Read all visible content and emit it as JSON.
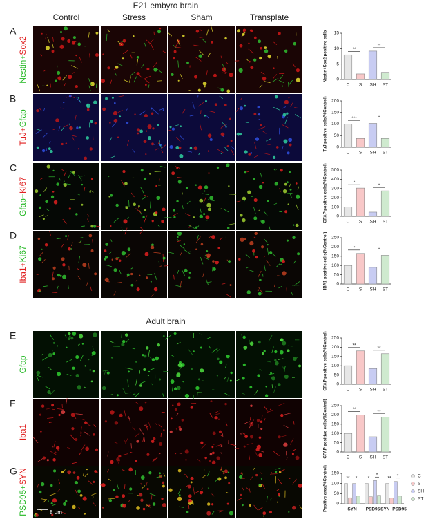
{
  "header": {
    "title": "E21 embyro brain",
    "section2": "Adult brain"
  },
  "columns": [
    "Control",
    "Stress",
    "Sham",
    "Transplate"
  ],
  "rows": [
    {
      "letter": "A",
      "label": [
        {
          "text": "Nestin",
          "color": "#22b822"
        },
        {
          "text": "+",
          "color": "#22b822"
        },
        {
          "text": "Sox2",
          "color": "#e02020"
        }
      ]
    },
    {
      "letter": "B",
      "label": [
        {
          "text": "TuJ",
          "color": "#e02020"
        },
        {
          "text": "+",
          "color": "#e02020"
        },
        {
          "text": "Gfap",
          "color": "#22b822"
        }
      ]
    },
    {
      "letter": "C",
      "label": [
        {
          "text": "Gfap",
          "color": "#22b822"
        },
        {
          "text": "+",
          "color": "#22b822"
        },
        {
          "text": "Ki67",
          "color": "#e02020"
        }
      ]
    },
    {
      "letter": "D",
      "label": [
        {
          "text": "Iba1",
          "color": "#e02020"
        },
        {
          "text": "+",
          "color": "#e02020"
        },
        {
          "text": "Ki67",
          "color": "#22b822"
        }
      ]
    },
    {
      "letter": "E",
      "label": [
        {
          "text": "Gfap",
          "color": "#22b822"
        }
      ]
    },
    {
      "letter": "F",
      "label": [
        {
          "text": "Iba1",
          "color": "#e02020"
        }
      ]
    },
    {
      "letter": "G",
      "label": [
        {
          "text": "PSD95",
          "color": "#22b822"
        },
        {
          "text": "+",
          "color": "#22b822"
        },
        {
          "text": "SYN",
          "color": "#e02020"
        }
      ]
    }
  ],
  "scale_bar": "8 μm",
  "chart_data": [
    {
      "type": "bar",
      "ylabel": "Nestin+Sox2 positive cells",
      "categories": [
        "C",
        "S",
        "SH",
        "ST"
      ],
      "values": [
        8,
        1.8,
        9.2,
        2.3
      ],
      "colors": [
        "#e6e6e6",
        "#f8c8c8",
        "#c8ccf2",
        "#cfeacf"
      ],
      "ylim": [
        0,
        15
      ],
      "yticks": [
        0,
        5,
        10,
        15
      ],
      "annotations": [
        "**",
        "**"
      ]
    },
    {
      "type": "bar",
      "ylabel": "TuJ positive cells(%Control)",
      "categories": [
        "C",
        "S",
        "SH",
        "ST"
      ],
      "values": [
        100,
        38,
        103,
        38
      ],
      "colors": [
        "#e6e6e6",
        "#f8c8c8",
        "#c8ccf2",
        "#cfeacf"
      ],
      "ylim": [
        0,
        200
      ],
      "yticks": [
        0,
        50,
        100,
        150,
        200
      ],
      "annotations": [
        "***",
        "*"
      ]
    },
    {
      "type": "bar",
      "ylabel": "GFAP positive cells(%Control)",
      "categories": [
        "C",
        "S",
        "SH",
        "ST"
      ],
      "values": [
        100,
        305,
        45,
        275
      ],
      "colors": [
        "#e6e6e6",
        "#f8c8c8",
        "#c8ccf2",
        "#cfeacf"
      ],
      "ylim": [
        0,
        500
      ],
      "yticks": [
        0,
        100,
        200,
        300,
        400,
        500
      ],
      "annotations": [
        "*",
        "*"
      ]
    },
    {
      "type": "bar",
      "ylabel": "IBA1 positive cells(%Control)",
      "categories": [
        "C",
        "S",
        "SH",
        "ST"
      ],
      "values": [
        100,
        165,
        90,
        155
      ],
      "colors": [
        "#e6e6e6",
        "#f8c8c8",
        "#c8ccf2",
        "#cfeacf"
      ],
      "ylim": [
        0,
        250
      ],
      "yticks": [
        0,
        50,
        100,
        150,
        200,
        250
      ],
      "annotations": [
        "*",
        "*"
      ]
    },
    {
      "type": "bar",
      "ylabel": "GFAP positive cells(%Control)",
      "categories": [
        "C",
        "S",
        "SH",
        "ST"
      ],
      "values": [
        100,
        180,
        85,
        165
      ],
      "colors": [
        "#e6e6e6",
        "#f8c8c8",
        "#c8ccf2",
        "#cfeacf"
      ],
      "ylim": [
        0,
        250
      ],
      "yticks": [
        0,
        50,
        100,
        150,
        200,
        250
      ],
      "annotations": [
        "**",
        "**"
      ]
    },
    {
      "type": "bar",
      "ylabel": "GFAP positive cells(%Control)",
      "categories": [
        "C",
        "S",
        "SH",
        "ST"
      ],
      "values": [
        100,
        200,
        82,
        188
      ],
      "colors": [
        "#e6e6e6",
        "#f8c8c8",
        "#c8ccf2",
        "#cfeacf"
      ],
      "ylim": [
        0,
        250
      ],
      "yticks": [
        0,
        50,
        100,
        150,
        200,
        250
      ],
      "annotations": [
        "**",
        "**"
      ]
    },
    {
      "type": "grouped_bar",
      "ylabel": "Positive area(%Control)",
      "categories": [
        "SYN",
        "PSD95",
        "SYN+PSD95"
      ],
      "series": [
        {
          "name": "C",
          "color": "#e6e6e6",
          "values": [
            100,
            100,
            100
          ]
        },
        {
          "name": "S",
          "color": "#f8c8c8",
          "values": [
            30,
            35,
            28
          ]
        },
        {
          "name": "SH",
          "color": "#c8ccf2",
          "values": [
            100,
            115,
            110
          ]
        },
        {
          "name": "ST",
          "color": "#cfeacf",
          "values": [
            38,
            42,
            38
          ]
        }
      ],
      "ylim": [
        0,
        150
      ],
      "yticks": [
        0,
        50,
        100,
        150
      ],
      "annotations": [
        "**",
        "*",
        "*",
        "*",
        "**",
        "*"
      ]
    }
  ]
}
